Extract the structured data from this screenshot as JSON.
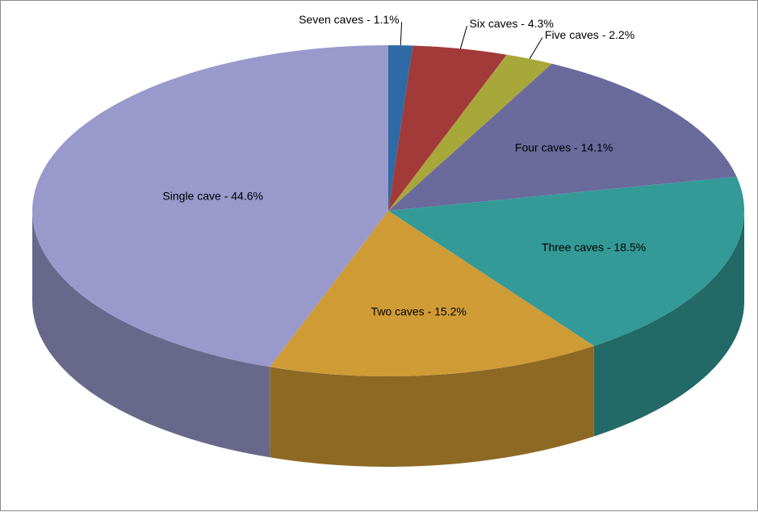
{
  "chart_data": {
    "type": "pie",
    "style": "3d",
    "title": "",
    "legend": "none",
    "slices": [
      {
        "label": "Seven caves - 1.1%",
        "category": "Seven caves",
        "value": 1.1,
        "color": "#2e6aa6"
      },
      {
        "label": "Six caves - 4.3%",
        "category": "Six caves",
        "value": 4.3,
        "color": "#a33a3a"
      },
      {
        "label": "Five caves - 2.2%",
        "category": "Five caves",
        "value": 2.2,
        "color": "#a8a83a"
      },
      {
        "label": "Four caves - 14.1%",
        "category": "Four caves",
        "value": 14.1,
        "color": "#6a6a9c"
      },
      {
        "label": "Three caves - 18.5%",
        "category": "Three caves",
        "value": 18.5,
        "color": "#339a98"
      },
      {
        "label": "Two caves - 15.2%",
        "category": "Two caves",
        "value": 15.2,
        "color": "#cf9b35"
      },
      {
        "label": "Single cave - 44.6%",
        "category": "Single cave",
        "value": 44.6,
        "color": "#9999cc"
      }
    ]
  }
}
